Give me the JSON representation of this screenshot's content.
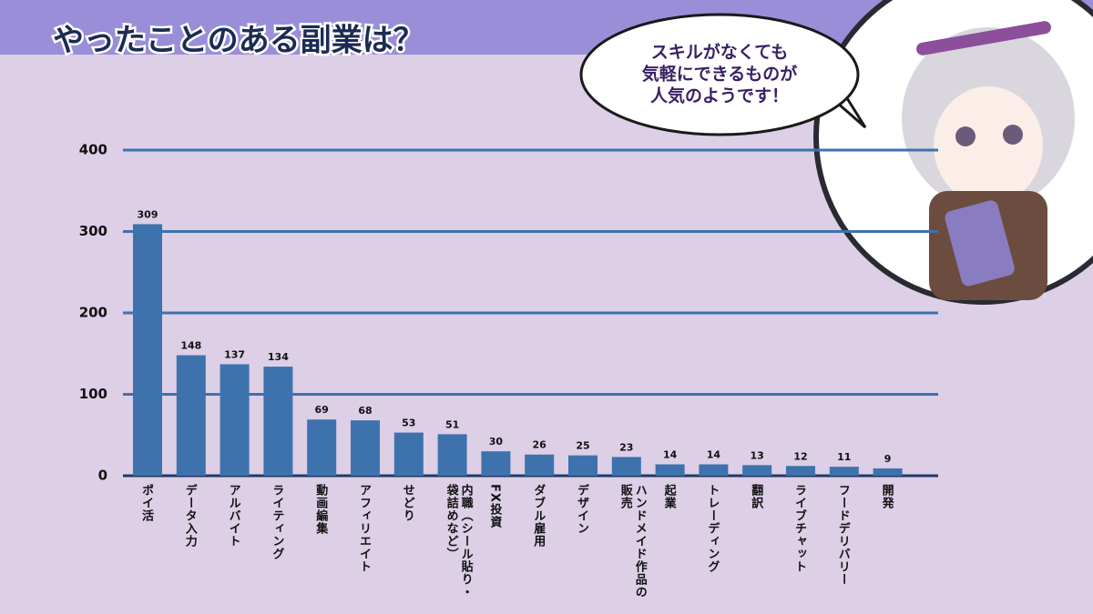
{
  "chart_data": {
    "type": "bar",
    "title": "やったことのある副業は？",
    "annotation": [
      "スキルがなくても",
      "気軽にできるものが",
      "人気のようです！"
    ],
    "categories": [
      "ポイ活",
      "データ入力",
      "アルバイト",
      "ライティング",
      "動画編集",
      "アフィリエイト",
      "せどり",
      "内職（シール貼り・袋詰めなど）",
      "FX投資",
      "ダブル雇用",
      "デザイン",
      "ハンドメイド作品の販売",
      "起業",
      "トレーディング",
      "翻訳",
      "ライブチャット",
      "フードデリバリー",
      "開発"
    ],
    "values": [
      309,
      148,
      137,
      134,
      69,
      68,
      53,
      51,
      30,
      26,
      25,
      23,
      14,
      14,
      13,
      12,
      11,
      9
    ],
    "color": "#3d72ad",
    "ylim": [
      0,
      400
    ],
    "yticks": [
      0,
      100,
      200,
      300,
      400
    ],
    "grid": true
  }
}
